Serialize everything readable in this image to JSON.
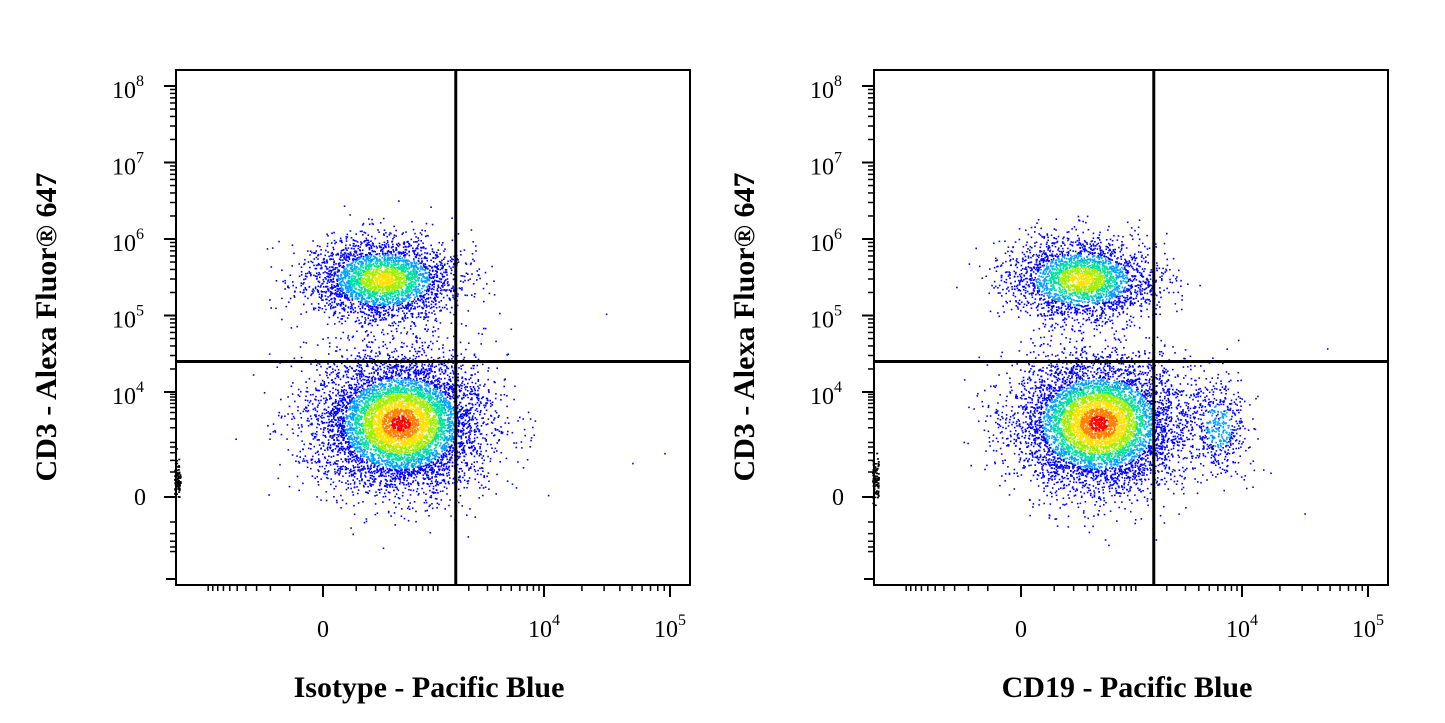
{
  "chart_data": [
    {
      "type": "scatter",
      "subtype": "flow-cytometry density dot plot",
      "xlabel": "Isotype - Pacific Blue",
      "ylabel": "CD3 - Alexa Fluor® 647",
      "x_scale": "biexponential",
      "y_scale": "biexponential",
      "x_ticks": [
        {
          "value": 0,
          "base": "0",
          "exp": ""
        },
        {
          "value": 10000,
          "base": "10",
          "exp": "4"
        },
        {
          "value": 100000,
          "base": "10",
          "exp": "5"
        }
      ],
      "y_ticks": [
        {
          "value": 0,
          "base": "0",
          "exp": ""
        },
        {
          "value": 10000,
          "base": "10",
          "exp": "4"
        },
        {
          "value": 100000,
          "base": "10",
          "exp": "5"
        },
        {
          "value": 1000000,
          "base": "10",
          "exp": "6"
        },
        {
          "value": 10000000,
          "base": "10",
          "exp": "7"
        },
        {
          "value": 100000000,
          "base": "10",
          "exp": "8"
        }
      ],
      "quadrant_gate": {
        "x": 1500,
        "y": 25000
      },
      "colormap": [
        "#0000ff",
        "#00a0ff",
        "#00e0a0",
        "#a0f000",
        "#ffe000",
        "#ff8000",
        "#ff0000"
      ],
      "populations": [
        {
          "center": [
            400,
            2500
          ],
          "spread": [
            0.85,
            0.55
          ],
          "count": 7000,
          "peak_density": "high"
        },
        {
          "center": [
            250,
            300000
          ],
          "spread": [
            0.75,
            0.33
          ],
          "count": 3200,
          "peak_density": "medium"
        }
      ]
    },
    {
      "type": "scatter",
      "subtype": "flow-cytometry density dot plot",
      "xlabel": "CD19 - Pacific Blue",
      "ylabel": "CD3 - Alexa Fluor® 647",
      "x_scale": "biexponential",
      "y_scale": "biexponential",
      "x_ticks": [
        {
          "value": 0,
          "base": "0",
          "exp": ""
        },
        {
          "value": 10000,
          "base": "10",
          "exp": "4"
        },
        {
          "value": 100000,
          "base": "10",
          "exp": "5"
        }
      ],
      "y_ticks": [
        {
          "value": 0,
          "base": "0",
          "exp": ""
        },
        {
          "value": 10000,
          "base": "10",
          "exp": "4"
        },
        {
          "value": 100000,
          "base": "10",
          "exp": "5"
        },
        {
          "value": 1000000,
          "base": "10",
          "exp": "6"
        },
        {
          "value": 10000000,
          "base": "10",
          "exp": "7"
        },
        {
          "value": 100000000,
          "base": "10",
          "exp": "8"
        }
      ],
      "quadrant_gate": {
        "x": 1500,
        "y": 25000
      },
      "colormap": [
        "#0000ff",
        "#00a0ff",
        "#00e0a0",
        "#a0f000",
        "#ffe000",
        "#ff8000",
        "#ff0000"
      ],
      "populations": [
        {
          "center": [
            400,
            2500
          ],
          "spread": [
            0.85,
            0.55
          ],
          "count": 6500,
          "peak_density": "high"
        },
        {
          "center": [
            250,
            300000
          ],
          "spread": [
            0.75,
            0.33
          ],
          "count": 2800,
          "peak_density": "medium"
        },
        {
          "center": [
            6000,
            2200
          ],
          "spread": [
            0.35,
            0.45
          ],
          "count": 500,
          "peak_density": "low"
        }
      ]
    }
  ]
}
